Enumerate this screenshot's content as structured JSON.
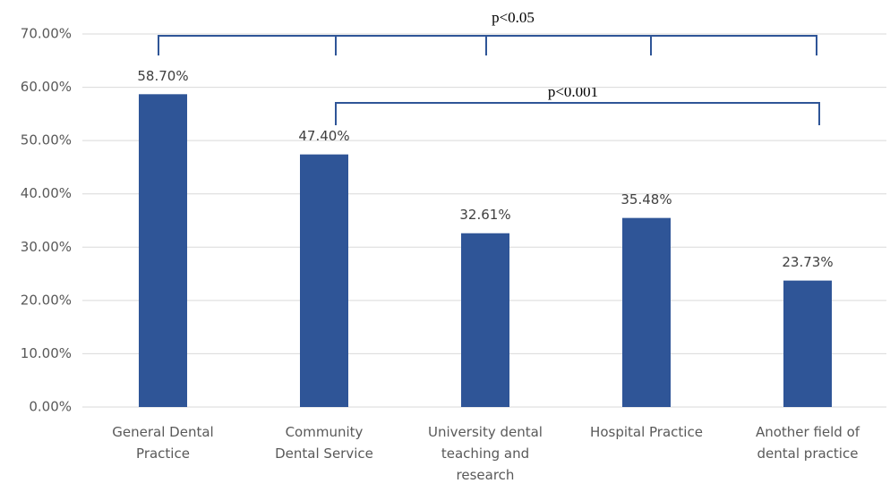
{
  "chart_data": {
    "type": "bar",
    "categories": [
      "General Dental\nPractice",
      "Community\nDental Service",
      "University dental\nteaching and\nresearch",
      "Hospital Practice",
      "Another field of\ndental practice"
    ],
    "values": [
      58.7,
      47.4,
      32.61,
      35.48,
      23.73
    ],
    "value_labels": [
      "58.70%",
      "47.40%",
      "32.61%",
      "35.48%",
      "23.73%"
    ],
    "color": "#2f5597",
    "ylim": [
      0,
      70
    ],
    "yticks": [
      {
        "value": 0,
        "label": "0.00%"
      },
      {
        "value": 10,
        "label": "10.00%"
      },
      {
        "value": 20,
        "label": "20.00%"
      },
      {
        "value": 30,
        "label": "30.00%"
      },
      {
        "value": 40,
        "label": "40.00%"
      },
      {
        "value": 50,
        "label": "50.00%"
      },
      {
        "value": 60,
        "label": "60.00%"
      },
      {
        "value": 70,
        "label": "70.00%"
      }
    ],
    "grid": true,
    "annotations": [
      "p<0.05",
      "p<0.001"
    ]
  }
}
